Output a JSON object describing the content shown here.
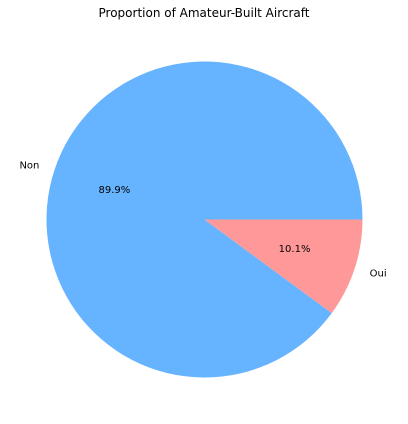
{
  "chart_data": {
    "type": "pie",
    "title": "Proportion of Amateur-Built Aircraft",
    "categories": [
      "Non",
      "Oui"
    ],
    "values": [
      89.9,
      10.1
    ],
    "value_labels": [
      "89.9%",
      "10.1%"
    ],
    "colors": [
      "#66b3ff",
      "#ff9999"
    ],
    "start_angle_deg": 0,
    "direction": "counterclockwise"
  }
}
